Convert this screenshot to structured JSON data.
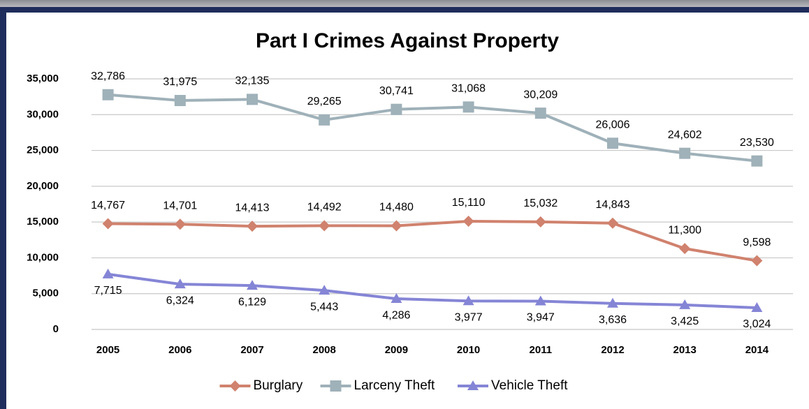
{
  "chart_data": {
    "type": "line",
    "title": "Part I Crimes Against Property",
    "categories": [
      "2005",
      "2006",
      "2007",
      "2008",
      "2009",
      "2010",
      "2011",
      "2012",
      "2013",
      "2014"
    ],
    "series": [
      {
        "name": "Burglary",
        "color": "#d0826e",
        "marker": "diamond",
        "values": [
          14767,
          14701,
          14413,
          14492,
          14480,
          15110,
          15032,
          14843,
          11300,
          9598
        ],
        "value_labels": [
          "14,767",
          "14,701",
          "14,413",
          "14,492",
          "14,480",
          "15,110",
          "15,032",
          "14,843",
          "11,300",
          "9,598"
        ]
      },
      {
        "name": "Larceny Theft",
        "color": "#9fb1b9",
        "marker": "square",
        "values": [
          32786,
          31975,
          32135,
          29265,
          30741,
          31068,
          30209,
          26006,
          24602,
          23530
        ],
        "value_labels": [
          "32,786",
          "31,975",
          "32,135",
          "29,265",
          "30,741",
          "31,068",
          "30,209",
          "26,006",
          "24,602",
          "23,530"
        ]
      },
      {
        "name": "Vehicle Theft",
        "color": "#8585d6",
        "marker": "triangle",
        "values": [
          7715,
          6324,
          6129,
          5443,
          4286,
          3977,
          3947,
          3636,
          3425,
          3024
        ],
        "value_labels": [
          "7,715",
          "6,324",
          "6,129",
          "5,443",
          "4,286",
          "3,977",
          "3,947",
          "3,636",
          "3,425",
          "3,024"
        ]
      }
    ],
    "ylim": [
      0,
      35000
    ],
    "yticks": [
      0,
      {
        "value": 5000,
        "label": "5,000"
      },
      {
        "value": 10000,
        "label": "10,000"
      },
      {
        "value": 15000,
        "label": "15,000"
      },
      {
        "value": 20000,
        "label": "20,000"
      },
      {
        "value": 25000,
        "label": "25,000"
      },
      {
        "value": 30000,
        "label": "30,000"
      },
      {
        "value": 35000,
        "label": "35,000"
      }
    ],
    "grid": true,
    "legend": "bottom"
  }
}
